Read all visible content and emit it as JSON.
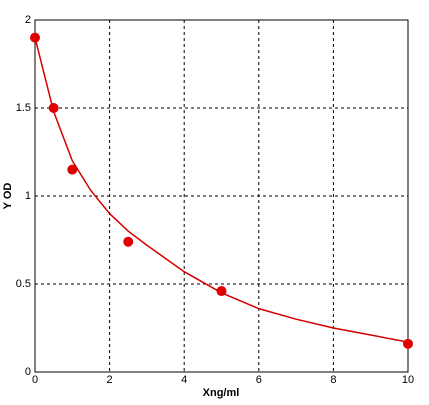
{
  "chart_data": {
    "type": "scatter",
    "xlabel": "Xng/ml",
    "ylabel": "Y OD",
    "xlim": [
      0,
      10
    ],
    "xticks": [
      0,
      2,
      4,
      6,
      8,
      10
    ],
    "ylim": [
      0,
      2
    ],
    "yticks": [
      0,
      0.5,
      1,
      1.5,
      2
    ],
    "grid": true,
    "series": [
      {
        "kind": "line",
        "color": "#d40000",
        "x": [
          0,
          0.5,
          1,
          1.5,
          2,
          2.5,
          3,
          4,
          5,
          6,
          7,
          8,
          9,
          10
        ],
        "values": [
          1.9,
          1.48,
          1.2,
          1.03,
          0.9,
          0.8,
          0.72,
          0.57,
          0.45,
          0.36,
          0.3,
          0.25,
          0.21,
          0.17
        ]
      },
      {
        "kind": "points",
        "color": "#e00000",
        "x": [
          0,
          0.5,
          1,
          2.5,
          5,
          10
        ],
        "values": [
          1.9,
          1.5,
          1.15,
          0.74,
          0.46,
          0.16
        ]
      }
    ]
  }
}
